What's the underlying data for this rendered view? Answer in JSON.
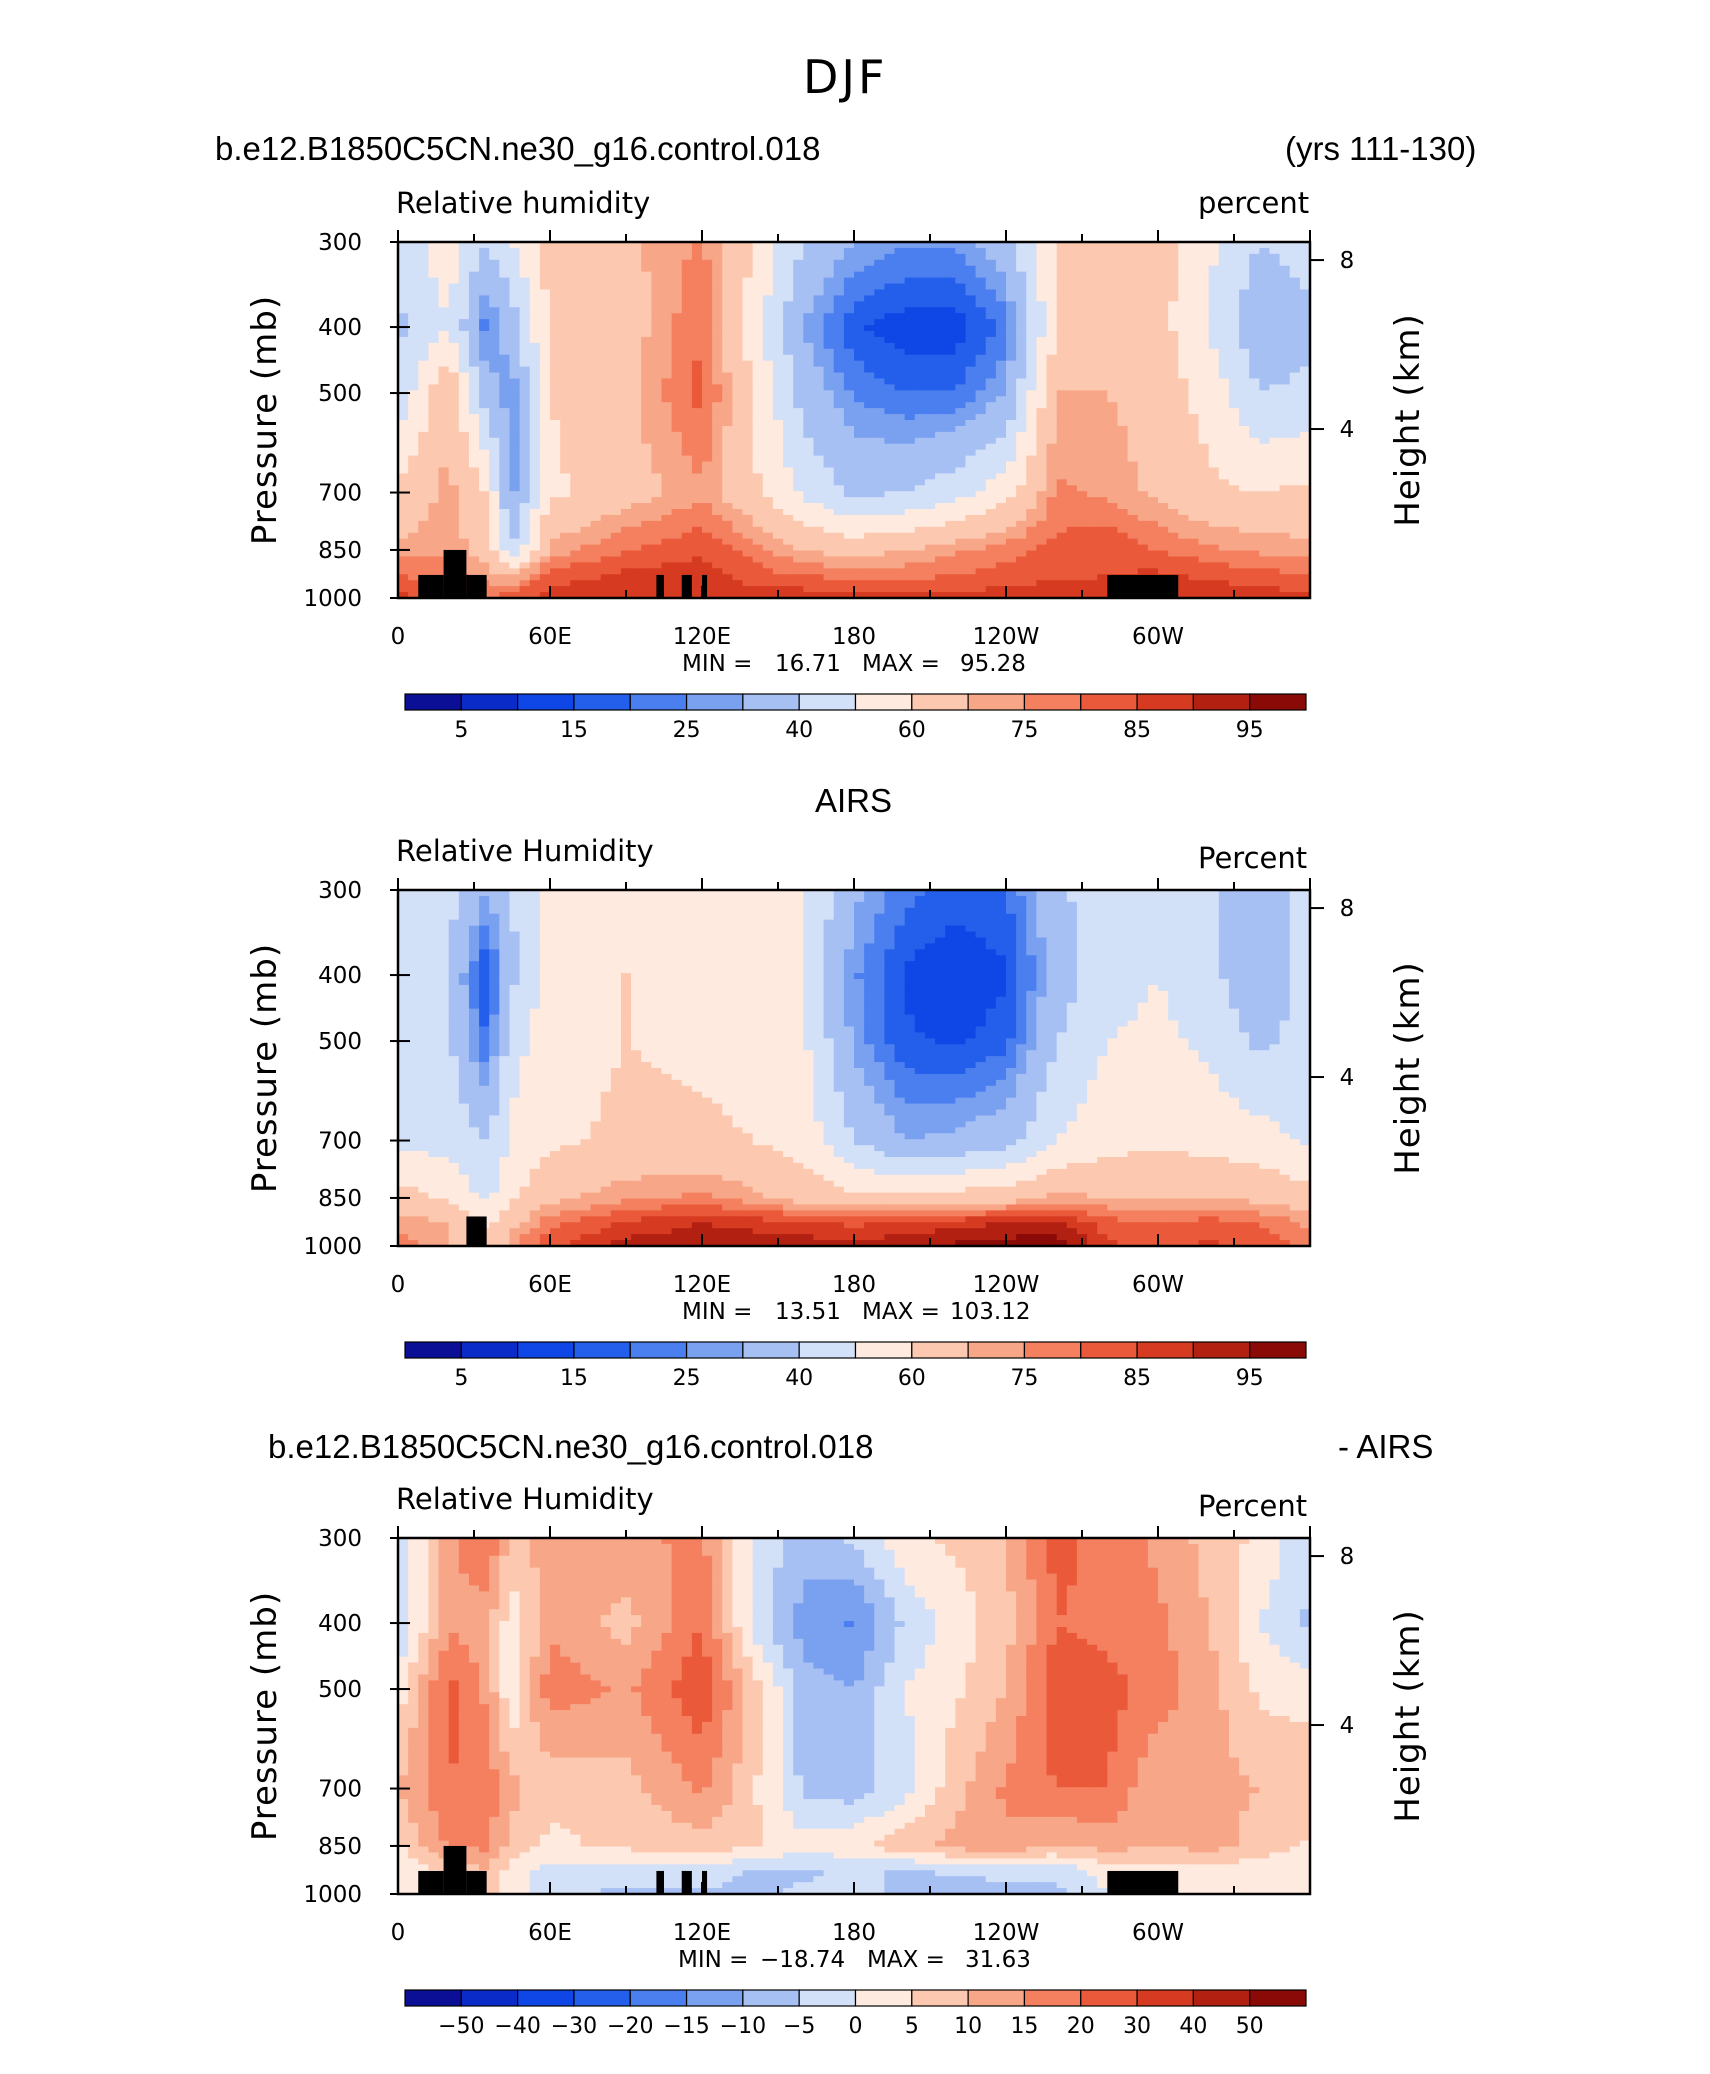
{
  "figure": {
    "season_title": "DJF"
  },
  "colors": {
    "rh": [
      "#0a0f96",
      "#0a2bc8",
      "#0f46e6",
      "#235fea",
      "#4b7ff0",
      "#7aa0f0",
      "#a7c0f4",
      "#d2e0f8",
      "#ffeadf",
      "#fcc9b0",
      "#f8a688",
      "#f48060",
      "#ea5a3a",
      "#d63a20",
      "#b22012",
      "#8a0a08"
    ],
    "diff": [
      "#0a0f96",
      "#0a2bc8",
      "#0f46e6",
      "#235fea",
      "#4b7ff0",
      "#7aa0f0",
      "#a7c0f4",
      "#d2e0f8",
      "#ffeadf",
      "#fcc9b0",
      "#f8a688",
      "#f48060",
      "#ea5a3a",
      "#d63a20",
      "#b22012",
      "#8a0a08"
    ],
    "terrain": "#000000"
  },
  "chart_data": [
    {
      "type": "heatmap",
      "id": "model",
      "title_left": "b.e12.B1850C5CN.ne30_g16.control.018",
      "title_right": "(yrs 111-130)",
      "subtitle_left": "Relative humidity",
      "subtitle_right": "percent",
      "ylabel": "Pressure (mb)",
      "ylabel_right": "Height (km)",
      "y_ticks": [
        "300",
        "400",
        "500",
        "700",
        "850",
        "1000"
      ],
      "y_tick_values": [
        300,
        400,
        500,
        700,
        850,
        1000
      ],
      "y_right_ticks": [
        "8",
        "4"
      ],
      "y_right_tick_values": [
        8,
        4
      ],
      "x_ticks": [
        "0",
        "60E",
        "120E",
        "180",
        "120W",
        "60W"
      ],
      "x_tick_values": [
        0,
        60,
        120,
        180,
        240,
        300
      ],
      "xlim": [
        0,
        360
      ],
      "ylim": [
        1000,
        300
      ],
      "stats": {
        "min_label": "MIN =",
        "min": "16.71",
        "max_label": "MAX =",
        "max": "95.28"
      },
      "colorbar_labels": [
        "5",
        "15",
        "25",
        "40",
        "60",
        "75",
        "85",
        "95"
      ],
      "levels": [
        5,
        10,
        15,
        20,
        25,
        30,
        40,
        50,
        60,
        70,
        75,
        80,
        85,
        90,
        95
      ],
      "field": {
        "lon": [
          0,
          20,
          35,
          45,
          60,
          90,
          120,
          140,
          160,
          180,
          200,
          220,
          240,
          260,
          280,
          300,
          320,
          340,
          360
        ],
        "p": [
          1000,
          925,
          850,
          700,
          500,
          400,
          300
        ],
        "rows": [
          [
            86,
            84,
            80,
            82,
            88,
            90,
            90,
            89,
            88,
            88,
            87,
            87,
            88,
            88,
            86,
            90,
            88,
            89,
            86
          ],
          [
            80,
            78,
            72,
            70,
            82,
            86,
            88,
            82,
            80,
            78,
            78,
            80,
            82,
            84,
            85,
            86,
            84,
            82,
            80
          ],
          [
            72,
            74,
            66,
            40,
            72,
            80,
            84,
            78,
            70,
            66,
            70,
            74,
            78,
            82,
            84,
            80,
            76,
            74,
            72
          ],
          [
            62,
            72,
            60,
            28,
            58,
            66,
            74,
            62,
            48,
            38,
            40,
            46,
            56,
            76,
            74,
            68,
            62,
            60,
            62
          ],
          [
            42,
            70,
            34,
            26,
            60,
            68,
            82,
            60,
            36,
            24,
            20,
            20,
            30,
            70,
            70,
            66,
            56,
            40,
            42
          ],
          [
            38,
            50,
            22,
            35,
            62,
            66,
            80,
            55,
            30,
            16,
            12,
            12,
            22,
            60,
            66,
            64,
            50,
            32,
            38
          ],
          [
            44,
            56,
            40,
            50,
            64,
            68,
            76,
            60,
            40,
            30,
            26,
            26,
            36,
            60,
            66,
            64,
            52,
            40,
            44
          ]
        ]
      },
      "terrain": [
        [
          8,
          18,
          1000,
          925
        ],
        [
          18,
          27,
          1000,
          850
        ],
        [
          27,
          35,
          1000,
          925
        ],
        [
          102,
          105,
          1000,
          925
        ],
        [
          112,
          116,
          1000,
          925
        ],
        [
          120,
          122,
          1000,
          925
        ],
        [
          280,
          308,
          1000,
          925
        ]
      ]
    },
    {
      "type": "heatmap",
      "id": "obs",
      "title": "AIRS",
      "subtitle_left": "Relative Humidity",
      "subtitle_right": "Percent",
      "ylabel": "Pressure (mb)",
      "ylabel_right": "Height (km)",
      "y_ticks": [
        "300",
        "400",
        "500",
        "700",
        "850",
        "1000"
      ],
      "y_tick_values": [
        300,
        400,
        500,
        700,
        850,
        1000
      ],
      "y_right_ticks": [
        "8",
        "4"
      ],
      "y_right_tick_values": [
        8,
        4
      ],
      "x_ticks": [
        "0",
        "60E",
        "120E",
        "180",
        "120W",
        "60W"
      ],
      "x_tick_values": [
        0,
        60,
        120,
        180,
        240,
        300
      ],
      "xlim": [
        0,
        360
      ],
      "ylim": [
        1000,
        300
      ],
      "stats": {
        "min_label": "MIN =",
        "min": "13.51",
        "max_label": "MAX =",
        "max": "103.12"
      },
      "colorbar_labels": [
        "5",
        "15",
        "25",
        "40",
        "60",
        "75",
        "85",
        "95"
      ],
      "levels": [
        5,
        10,
        15,
        20,
        25,
        30,
        40,
        50,
        60,
        70,
        75,
        80,
        85,
        90,
        95
      ],
      "field": {
        "lon": [
          0,
          20,
          35,
          45,
          60,
          90,
          120,
          140,
          160,
          180,
          200,
          220,
          240,
          260,
          280,
          300,
          320,
          340,
          360
        ],
        "p": [
          1000,
          925,
          850,
          700,
          500,
          400,
          300
        ],
        "rows": [
          [
            78,
            70,
            62,
            74,
            84,
            92,
            94,
            94,
            93,
            92,
            94,
            96,
            98,
            98,
            86,
            84,
            86,
            84,
            78
          ],
          [
            74,
            70,
            58,
            68,
            78,
            86,
            90,
            88,
            86,
            84,
            86,
            88,
            90,
            92,
            82,
            80,
            82,
            80,
            74
          ],
          [
            64,
            58,
            48,
            58,
            68,
            74,
            76,
            72,
            66,
            62,
            62,
            64,
            66,
            72,
            70,
            70,
            70,
            68,
            64
          ],
          [
            48,
            46,
            40,
            52,
            58,
            62,
            62,
            60,
            56,
            40,
            30,
            32,
            36,
            50,
            56,
            58,
            56,
            54,
            48
          ],
          [
            44,
            42,
            20,
            46,
            56,
            60,
            58,
            56,
            52,
            28,
            16,
            14,
            18,
            40,
            50,
            52,
            48,
            38,
            44
          ],
          [
            46,
            40,
            14,
            38,
            54,
            60,
            56,
            58,
            50,
            26,
            14,
            10,
            14,
            34,
            46,
            50,
            44,
            30,
            46
          ],
          [
            46,
            44,
            30,
            40,
            54,
            56,
            56,
            56,
            50,
            32,
            22,
            18,
            20,
            38,
            46,
            50,
            44,
            30,
            46
          ]
        ]
      },
      "terrain": [
        [
          27,
          35,
          1000,
          905
        ]
      ]
    },
    {
      "type": "heatmap",
      "id": "diff",
      "title_left": "b.e12.B1850C5CN.ne30_g16.control.018",
      "title_right": "- AIRS",
      "subtitle_left": "Relative Humidity",
      "subtitle_right": "Percent",
      "ylabel": "Pressure (mb)",
      "ylabel_right": "Height (km)",
      "y_ticks": [
        "300",
        "400",
        "500",
        "700",
        "850",
        "1000"
      ],
      "y_tick_values": [
        300,
        400,
        500,
        700,
        850,
        1000
      ],
      "y_right_ticks": [
        "8",
        "4"
      ],
      "y_right_tick_values": [
        8,
        4
      ],
      "x_ticks": [
        "0",
        "60E",
        "120E",
        "180",
        "120W",
        "60W"
      ],
      "x_tick_values": [
        0,
        60,
        120,
        180,
        240,
        300
      ],
      "xlim": [
        0,
        360
      ],
      "ylim": [
        1000,
        300
      ],
      "stats": {
        "min_label": "MIN =",
        "min": "−18.74",
        "max_label": "MAX =",
        "max": "31.63"
      },
      "colorbar_labels": [
        "−50",
        "−40",
        "−30",
        "−20",
        "−15",
        "−10",
        "−5",
        "0",
        "5",
        "10",
        "15",
        "20",
        "30",
        "40",
        "50"
      ],
      "levels": [
        -50,
        -40,
        -30,
        -20,
        -15,
        -10,
        -5,
        0,
        5,
        10,
        15,
        20,
        30,
        40,
        50
      ],
      "field": {
        "lon": [
          0,
          20,
          35,
          45,
          60,
          90,
          120,
          140,
          160,
          180,
          200,
          220,
          240,
          260,
          280,
          300,
          320,
          340,
          360
        ],
        "p": [
          1000,
          925,
          850,
          700,
          500,
          400,
          300
        ],
        "rows": [
          [
            4,
            8,
            10,
            2,
            -4,
            -6,
            -6,
            -6,
            -4,
            -4,
            -6,
            -8,
            -6,
            -6,
            0,
            4,
            2,
            4,
            4
          ],
          [
            2,
            6,
            10,
            2,
            -2,
            -2,
            -2,
            -6,
            -6,
            -4,
            -6,
            -4,
            -4,
            -4,
            2,
            4,
            2,
            2,
            2
          ],
          [
            4,
            16,
            16,
            8,
            4,
            6,
            8,
            6,
            2,
            4,
            8,
            12,
            14,
            10,
            12,
            10,
            12,
            8,
            4
          ],
          [
            10,
            20,
            18,
            12,
            6,
            8,
            16,
            6,
            -6,
            -8,
            -2,
            8,
            16,
            20,
            20,
            10,
            12,
            10,
            10
          ],
          [
            2,
            22,
            14,
            0,
            18,
            14,
            24,
            8,
            -8,
            -10,
            0,
            4,
            10,
            24,
            22,
            18,
            12,
            4,
            2
          ],
          [
            -6,
            14,
            12,
            2,
            14,
            8,
            20,
            -2,
            -12,
            -16,
            -4,
            2,
            8,
            20,
            18,
            16,
            10,
            0,
            -6
          ],
          [
            -4,
            14,
            20,
            8,
            12,
            14,
            16,
            0,
            -8,
            -4,
            4,
            6,
            10,
            22,
            18,
            14,
            8,
            4,
            -4
          ]
        ]
      },
      "terrain": [
        [
          8,
          18,
          1000,
          925
        ],
        [
          18,
          27,
          1000,
          850
        ],
        [
          27,
          35,
          1000,
          925
        ],
        [
          102,
          105,
          1000,
          925
        ],
        [
          112,
          116,
          1000,
          925
        ],
        [
          120,
          122,
          1000,
          925
        ],
        [
          280,
          308,
          1000,
          925
        ]
      ]
    }
  ]
}
